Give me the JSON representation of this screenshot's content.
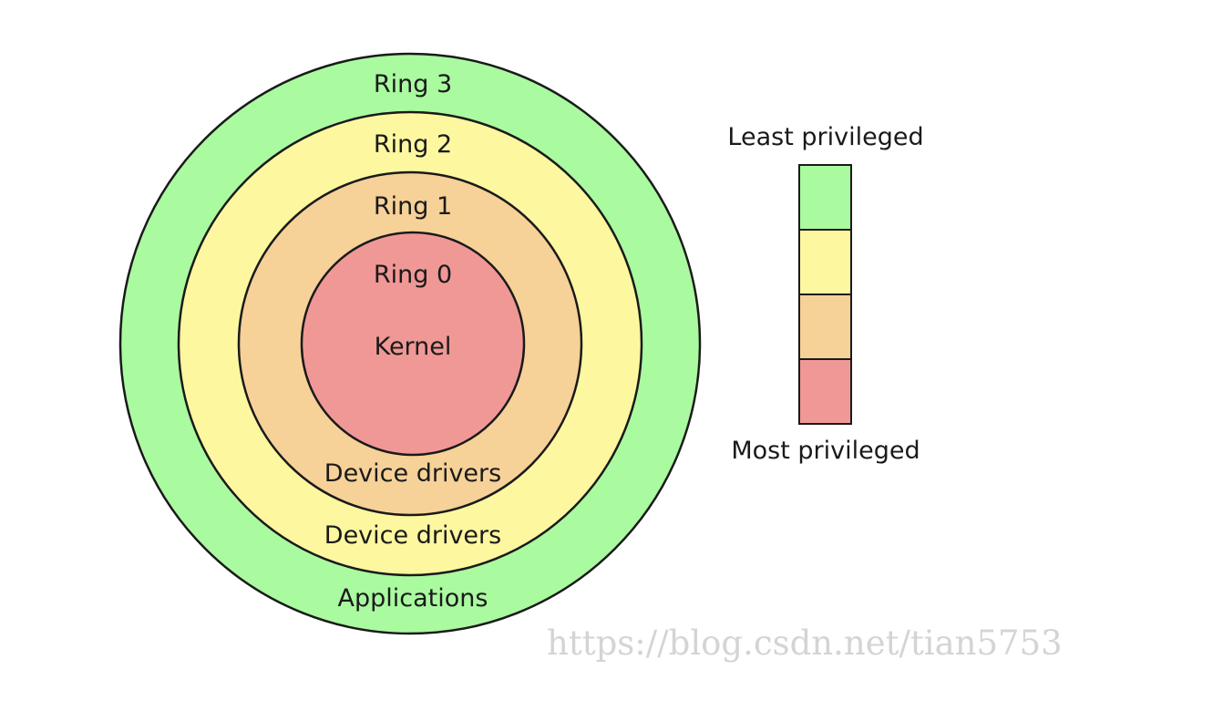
{
  "rings": [
    {
      "id": "ring-3",
      "label": "Ring 3",
      "bottom_label": "Applications",
      "color": "#aafaa0"
    },
    {
      "id": "ring-2",
      "label": "Ring 2",
      "bottom_label": "Device drivers",
      "color": "#fdf7a0"
    },
    {
      "id": "ring-1",
      "label": "Ring 1",
      "bottom_label": "Device drivers",
      "color": "#f6d198"
    },
    {
      "id": "ring-0",
      "label": "Ring 0",
      "center_label": "Kernel",
      "color": "#f09896"
    }
  ],
  "legend": {
    "top_label": "Least privileged",
    "bottom_label": "Most privileged"
  },
  "watermark": "https://blog.csdn.net/tian5753"
}
